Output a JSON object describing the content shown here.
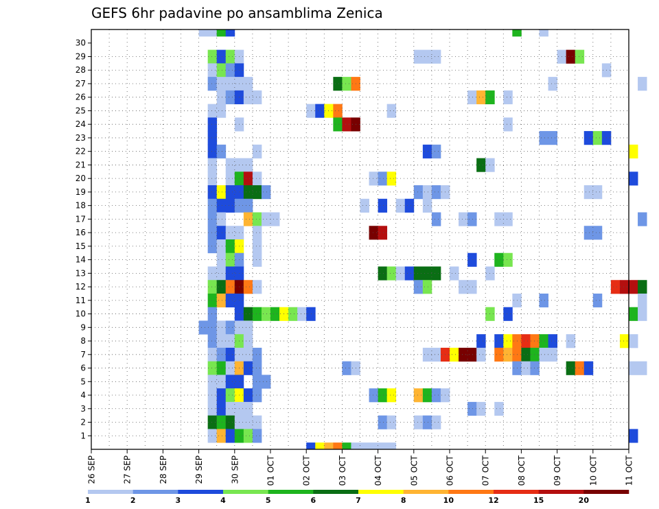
{
  "chart_data": {
    "type": "heatmap",
    "title": "GEFS 6hr padavine po ansamblima Zenica",
    "xlabel": "",
    "ylabel": "",
    "x_range_days": [
      0,
      15
    ],
    "y_range": [
      0,
      30
    ],
    "grid": "dotted",
    "x_tick_labels": [
      "26 SEP",
      "27 SEP",
      "28 SEP",
      "29 SEP",
      "30 SEP",
      "01 OCT",
      "02 OCT",
      "03 OCT",
      "04 OCT",
      "05 OCT",
      "06 OCT",
      "07 OCT",
      "08 OCT",
      "09 OCT",
      "10 OCT",
      "11 OCT"
    ],
    "y_tick_labels": [
      "1",
      "2",
      "3",
      "4",
      "5",
      "6",
      "7",
      "8",
      "9",
      "10",
      "11",
      "12",
      "13",
      "14",
      "15",
      "16",
      "17",
      "18",
      "19",
      "20",
      "21",
      "22",
      "23",
      "24",
      "25",
      "26",
      "27",
      "28",
      "29",
      "30"
    ],
    "colorbar": {
      "colors": [
        "#b4c8f0",
        "#6e96e6",
        "#1e4bdc",
        "#78e650",
        "#1eb41e",
        "#0a6e14",
        "#ffff00",
        "#ffb432",
        "#ff7814",
        "#e62d14",
        "#b40f0f",
        "#780000"
      ],
      "labels": [
        "1",
        "2",
        "3",
        "4",
        "5",
        "6",
        "7",
        "8",
        "10",
        "12",
        "15",
        "20"
      ],
      "legend_placement": "bottom"
    },
    "cell_step_days": 0.25,
    "cells_note": "each cell: [member, start time step (6h steps from 26 SEP 00UTC), run length in steps, color class index into colorbar.colors]",
    "cells": [
      [
        30,
        12,
        2,
        0
      ],
      [
        30,
        14,
        1,
        4
      ],
      [
        30,
        15,
        1,
        2
      ],
      [
        30,
        47,
        1,
        4
      ],
      [
        30,
        50,
        1,
        0
      ],
      [
        29,
        13,
        1,
        3
      ],
      [
        29,
        14,
        1,
        2
      ],
      [
        29,
        15,
        1,
        3
      ],
      [
        29,
        16,
        1,
        0
      ],
      [
        29,
        36,
        3,
        0
      ],
      [
        29,
        52,
        1,
        0
      ],
      [
        29,
        53,
        1,
        11
      ],
      [
        29,
        54,
        1,
        3
      ],
      [
        28,
        13,
        1,
        0
      ],
      [
        28,
        14,
        1,
        3
      ],
      [
        28,
        15,
        1,
        1
      ],
      [
        28,
        16,
        1,
        2
      ],
      [
        28,
        57,
        1,
        0
      ],
      [
        27,
        13,
        1,
        1
      ],
      [
        27,
        14,
        1,
        0
      ],
      [
        27,
        15,
        3,
        0
      ],
      [
        27,
        27,
        1,
        5
      ],
      [
        27,
        28,
        1,
        3
      ],
      [
        27,
        29,
        1,
        8
      ],
      [
        27,
        51,
        1,
        0
      ],
      [
        27,
        61,
        1,
        0
      ],
      [
        26,
        14,
        1,
        0
      ],
      [
        26,
        15,
        1,
        1
      ],
      [
        26,
        16,
        1,
        2
      ],
      [
        26,
        17,
        2,
        0
      ],
      [
        26,
        42,
        1,
        0
      ],
      [
        26,
        43,
        1,
        7
      ],
      [
        26,
        44,
        1,
        4
      ],
      [
        26,
        46,
        1,
        0
      ],
      [
        25,
        13,
        2,
        0
      ],
      [
        25,
        24,
        1,
        0
      ],
      [
        25,
        25,
        1,
        2
      ],
      [
        25,
        26,
        1,
        6
      ],
      [
        25,
        27,
        1,
        8
      ],
      [
        25,
        33,
        1,
        0
      ],
      [
        24,
        13,
        1,
        2
      ],
      [
        24,
        16,
        1,
        0
      ],
      [
        24,
        27,
        1,
        4
      ],
      [
        24,
        28,
        1,
        10
      ],
      [
        24,
        29,
        1,
        11
      ],
      [
        24,
        46,
        1,
        0
      ],
      [
        23,
        13,
        1,
        2
      ],
      [
        23,
        50,
        2,
        1
      ],
      [
        23,
        55,
        1,
        2
      ],
      [
        23,
        56,
        1,
        3
      ],
      [
        23,
        57,
        1,
        2
      ],
      [
        22,
        13,
        1,
        2
      ],
      [
        22,
        14,
        1,
        1
      ],
      [
        22,
        18,
        1,
        0
      ],
      [
        22,
        37,
        1,
        2
      ],
      [
        22,
        38,
        1,
        1
      ],
      [
        22,
        60,
        1,
        6
      ],
      [
        21,
        13,
        1,
        0
      ],
      [
        21,
        15,
        3,
        0
      ],
      [
        21,
        43,
        1,
        5
      ],
      [
        21,
        44,
        1,
        0
      ],
      [
        20,
        13,
        1,
        0
      ],
      [
        20,
        15,
        1,
        0
      ],
      [
        20,
        16,
        1,
        4
      ],
      [
        20,
        17,
        1,
        10
      ],
      [
        20,
        18,
        1,
        0
      ],
      [
        20,
        31,
        1,
        0
      ],
      [
        20,
        32,
        1,
        1
      ],
      [
        20,
        33,
        1,
        6
      ],
      [
        20,
        60,
        1,
        2
      ],
      [
        19,
        13,
        1,
        2
      ],
      [
        19,
        14,
        1,
        6
      ],
      [
        19,
        15,
        1,
        2
      ],
      [
        19,
        16,
        1,
        2
      ],
      [
        19,
        17,
        2,
        5
      ],
      [
        19,
        19,
        1,
        1
      ],
      [
        19,
        36,
        1,
        1
      ],
      [
        19,
        37,
        1,
        0
      ],
      [
        19,
        38,
        1,
        1
      ],
      [
        19,
        39,
        1,
        0
      ],
      [
        19,
        55,
        2,
        0
      ],
      [
        18,
        13,
        1,
        1
      ],
      [
        18,
        14,
        2,
        2
      ],
      [
        18,
        16,
        2,
        1
      ],
      [
        18,
        30,
        1,
        0
      ],
      [
        18,
        32,
        1,
        2
      ],
      [
        18,
        34,
        1,
        0
      ],
      [
        18,
        35,
        1,
        2
      ],
      [
        18,
        37,
        1,
        0
      ],
      [
        17,
        13,
        1,
        1
      ],
      [
        17,
        14,
        1,
        0
      ],
      [
        17,
        17,
        1,
        7
      ],
      [
        17,
        18,
        1,
        3
      ],
      [
        17,
        19,
        2,
        0
      ],
      [
        17,
        38,
        1,
        1
      ],
      [
        17,
        41,
        1,
        0
      ],
      [
        17,
        42,
        1,
        1
      ],
      [
        17,
        45,
        2,
        0
      ],
      [
        17,
        61,
        1,
        1
      ],
      [
        16,
        13,
        1,
        1
      ],
      [
        16,
        14,
        1,
        2
      ],
      [
        16,
        15,
        1,
        0
      ],
      [
        16,
        16,
        1,
        0
      ],
      [
        16,
        18,
        1,
        0
      ],
      [
        16,
        31,
        1,
        11
      ],
      [
        16,
        32,
        1,
        10
      ],
      [
        16,
        55,
        2,
        1
      ],
      [
        15,
        13,
        1,
        1
      ],
      [
        15,
        14,
        1,
        0
      ],
      [
        15,
        15,
        1,
        4
      ],
      [
        15,
        16,
        1,
        6
      ],
      [
        15,
        18,
        1,
        0
      ],
      [
        14,
        14,
        1,
        0
      ],
      [
        14,
        15,
        1,
        3
      ],
      [
        14,
        16,
        1,
        1
      ],
      [
        14,
        18,
        1,
        0
      ],
      [
        14,
        42,
        1,
        2
      ],
      [
        14,
        45,
        1,
        4
      ],
      [
        14,
        46,
        1,
        3
      ],
      [
        13,
        13,
        1,
        0
      ],
      [
        13,
        14,
        1,
        0
      ],
      [
        13,
        15,
        1,
        2
      ],
      [
        13,
        16,
        1,
        2
      ],
      [
        13,
        32,
        1,
        5
      ],
      [
        13,
        33,
        1,
        3
      ],
      [
        13,
        34,
        1,
        0
      ],
      [
        13,
        35,
        1,
        2
      ],
      [
        13,
        36,
        3,
        5
      ],
      [
        13,
        40,
        1,
        0
      ],
      [
        13,
        44,
        1,
        0
      ],
      [
        12,
        13,
        1,
        3
      ],
      [
        12,
        14,
        1,
        5
      ],
      [
        12,
        15,
        1,
        8
      ],
      [
        12,
        16,
        1,
        11
      ],
      [
        12,
        17,
        1,
        8
      ],
      [
        12,
        18,
        1,
        0
      ],
      [
        12,
        36,
        1,
        1
      ],
      [
        12,
        37,
        1,
        3
      ],
      [
        12,
        41,
        2,
        0
      ],
      [
        12,
        58,
        1,
        9
      ],
      [
        12,
        59,
        2,
        10
      ],
      [
        12,
        61,
        1,
        5
      ],
      [
        11,
        13,
        1,
        4
      ],
      [
        11,
        14,
        1,
        7
      ],
      [
        11,
        15,
        1,
        2
      ],
      [
        11,
        16,
        1,
        2
      ],
      [
        11,
        47,
        1,
        0
      ],
      [
        11,
        50,
        1,
        1
      ],
      [
        11,
        56,
        1,
        1
      ],
      [
        11,
        61,
        1,
        0
      ],
      [
        10,
        13,
        1,
        1
      ],
      [
        10,
        16,
        1,
        2
      ],
      [
        10,
        17,
        1,
        5
      ],
      [
        10,
        18,
        1,
        4
      ],
      [
        10,
        19,
        1,
        3
      ],
      [
        10,
        20,
        1,
        4
      ],
      [
        10,
        21,
        1,
        6
      ],
      [
        10,
        22,
        1,
        3
      ],
      [
        10,
        23,
        1,
        0
      ],
      [
        10,
        24,
        1,
        2
      ],
      [
        10,
        44,
        1,
        3
      ],
      [
        10,
        46,
        1,
        2
      ],
      [
        10,
        60,
        1,
        4
      ],
      [
        10,
        61,
        1,
        0
      ],
      [
        9,
        12,
        2,
        1
      ],
      [
        9,
        14,
        1,
        0
      ],
      [
        9,
        15,
        1,
        1
      ],
      [
        9,
        16,
        1,
        0
      ],
      [
        9,
        17,
        1,
        0
      ],
      [
        8,
        13,
        1,
        1
      ],
      [
        8,
        14,
        1,
        0
      ],
      [
        8,
        15,
        1,
        0
      ],
      [
        8,
        16,
        1,
        3
      ],
      [
        8,
        17,
        1,
        0
      ],
      [
        8,
        43,
        1,
        2
      ],
      [
        8,
        45,
        1,
        2
      ],
      [
        8,
        46,
        1,
        6
      ],
      [
        8,
        47,
        1,
        8
      ],
      [
        8,
        48,
        1,
        9
      ],
      [
        8,
        49,
        1,
        8
      ],
      [
        8,
        50,
        1,
        4
      ],
      [
        8,
        51,
        1,
        2
      ],
      [
        8,
        53,
        1,
        0
      ],
      [
        8,
        59,
        1,
        6
      ],
      [
        8,
        60,
        1,
        0
      ],
      [
        7,
        13,
        1,
        0
      ],
      [
        7,
        14,
        1,
        1
      ],
      [
        7,
        15,
        1,
        2
      ],
      [
        7,
        16,
        2,
        0
      ],
      [
        7,
        18,
        1,
        1
      ],
      [
        7,
        37,
        2,
        0
      ],
      [
        7,
        39,
        1,
        9
      ],
      [
        7,
        40,
        1,
        6
      ],
      [
        7,
        41,
        2,
        11
      ],
      [
        7,
        43,
        1,
        0
      ],
      [
        7,
        45,
        1,
        8
      ],
      [
        7,
        46,
        1,
        7
      ],
      [
        7,
        47,
        1,
        8
      ],
      [
        7,
        48,
        1,
        5
      ],
      [
        7,
        49,
        1,
        4
      ],
      [
        7,
        50,
        2,
        0
      ],
      [
        6,
        13,
        1,
        3
      ],
      [
        6,
        14,
        1,
        4
      ],
      [
        6,
        15,
        1,
        0
      ],
      [
        6,
        16,
        1,
        7
      ],
      [
        6,
        17,
        1,
        2
      ],
      [
        6,
        18,
        1,
        1
      ],
      [
        6,
        28,
        1,
        1
      ],
      [
        6,
        29,
        1,
        0
      ],
      [
        6,
        47,
        1,
        1
      ],
      [
        6,
        48,
        1,
        0
      ],
      [
        6,
        49,
        1,
        1
      ],
      [
        6,
        53,
        1,
        5
      ],
      [
        6,
        54,
        1,
        8
      ],
      [
        6,
        55,
        1,
        2
      ],
      [
        6,
        60,
        2,
        0
      ],
      [
        5,
        13,
        2,
        0
      ],
      [
        5,
        15,
        2,
        2
      ],
      [
        5,
        18,
        2,
        1
      ],
      [
        4,
        13,
        1,
        0
      ],
      [
        4,
        14,
        1,
        2
      ],
      [
        4,
        15,
        1,
        3
      ],
      [
        4,
        16,
        1,
        6
      ],
      [
        4,
        17,
        1,
        2
      ],
      [
        4,
        18,
        1,
        1
      ],
      [
        4,
        31,
        1,
        1
      ],
      [
        4,
        32,
        1,
        4
      ],
      [
        4,
        33,
        1,
        6
      ],
      [
        4,
        36,
        1,
        7
      ],
      [
        4,
        37,
        1,
        4
      ],
      [
        4,
        38,
        1,
        1
      ],
      [
        4,
        39,
        1,
        0
      ],
      [
        3,
        13,
        1,
        0
      ],
      [
        3,
        14,
        1,
        2
      ],
      [
        3,
        15,
        1,
        0
      ],
      [
        3,
        16,
        1,
        0
      ],
      [
        3,
        17,
        1,
        0
      ],
      [
        3,
        42,
        1,
        1
      ],
      [
        3,
        43,
        1,
        0
      ],
      [
        3,
        45,
        1,
        0
      ],
      [
        2,
        13,
        1,
        5
      ],
      [
        2,
        14,
        1,
        4
      ],
      [
        2,
        15,
        1,
        5
      ],
      [
        2,
        16,
        3,
        0
      ],
      [
        2,
        32,
        1,
        1
      ],
      [
        2,
        33,
        1,
        0
      ],
      [
        2,
        36,
        1,
        0
      ],
      [
        2,
        37,
        1,
        1
      ],
      [
        2,
        38,
        1,
        0
      ],
      [
        1,
        13,
        1,
        0
      ],
      [
        1,
        14,
        1,
        7
      ],
      [
        1,
        15,
        1,
        2
      ],
      [
        1,
        16,
        1,
        4
      ],
      [
        1,
        17,
        1,
        3
      ],
      [
        1,
        18,
        1,
        1
      ],
      [
        1,
        60,
        1,
        2
      ],
      [
        0,
        24,
        1,
        2
      ],
      [
        0,
        25,
        1,
        6
      ],
      [
        0,
        26,
        1,
        7
      ],
      [
        0,
        27,
        1,
        8
      ],
      [
        0,
        28,
        1,
        4
      ],
      [
        0,
        29,
        1,
        0
      ],
      [
        0,
        30,
        1,
        0
      ],
      [
        0,
        31,
        3,
        0
      ]
    ]
  }
}
